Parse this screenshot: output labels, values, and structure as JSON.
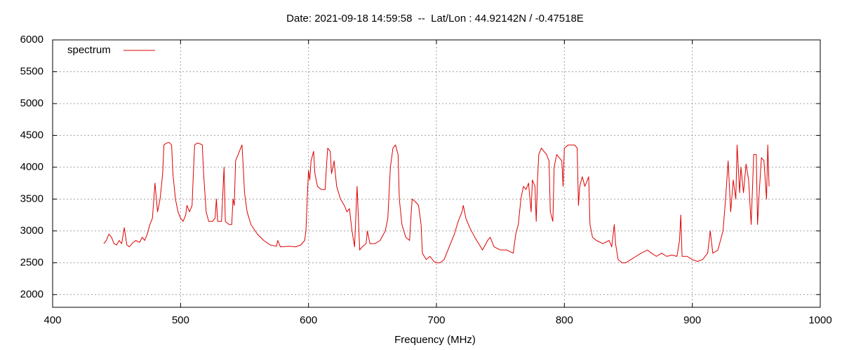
{
  "chart_data": {
    "type": "line",
    "title": "Date: 2021-09-18 14:59:58  --  Lat/Lon : 44.92142N / -0.47518E",
    "xlabel": "Frequency (MHz)",
    "xlim": [
      400,
      1000
    ],
    "xticks": [
      400,
      500,
      600,
      700,
      800,
      900,
      1000
    ],
    "ylim": [
      1800,
      6000
    ],
    "yticks": [
      2000,
      2500,
      3000,
      3500,
      4000,
      4500,
      5000,
      5500,
      6000
    ],
    "grid": true,
    "legend": "upper left",
    "x": [
      440,
      442,
      444,
      446,
      448,
      450,
      452,
      454,
      456,
      458,
      460,
      462,
      465,
      468,
      470,
      472,
      474,
      476,
      478,
      480,
      482,
      484,
      486,
      487,
      489,
      491,
      493,
      494,
      496,
      498,
      500,
      502,
      504,
      505,
      507,
      509,
      510,
      511,
      513,
      515,
      517,
      518,
      520,
      522,
      525,
      527,
      528,
      529,
      532,
      534,
      535,
      538,
      540,
      541,
      542,
      543,
      545,
      547,
      548,
      549,
      550,
      552,
      555,
      560,
      565,
      570,
      575,
      576,
      578,
      585,
      590,
      594,
      597,
      598,
      599,
      600,
      601,
      602,
      604,
      605,
      607,
      610,
      613,
      614,
      615,
      617,
      618,
      620,
      622,
      625,
      628,
      630,
      632,
      634,
      636,
      638,
      640,
      642,
      645,
      646,
      648,
      652,
      656,
      660,
      662,
      664,
      666,
      668,
      670,
      671,
      673,
      676,
      679,
      680,
      681,
      684,
      686,
      688,
      689,
      692,
      695,
      698,
      700,
      703,
      706,
      710,
      714,
      717,
      720,
      721,
      723,
      726,
      730,
      733,
      736,
      740,
      742,
      745,
      750,
      755,
      760,
      762,
      764,
      766,
      768,
      770,
      772,
      774,
      775,
      777,
      778,
      779,
      780,
      782,
      784,
      786,
      788,
      789,
      791,
      792,
      794,
      796,
      798,
      799,
      800,
      803,
      806,
      808,
      810,
      811,
      812,
      814,
      816,
      818,
      819,
      820,
      822,
      825,
      830,
      835,
      837,
      839,
      840,
      842,
      845,
      848,
      852,
      856,
      860,
      865,
      868,
      872,
      876,
      880,
      884,
      888,
      890,
      891,
      892,
      896,
      900,
      904,
      908,
      912,
      914,
      916,
      920,
      924,
      926,
      928,
      930,
      932,
      934,
      935,
      937,
      938,
      940,
      942,
      944,
      946,
      948,
      950,
      951,
      952,
      954,
      956,
      958,
      959,
      960
    ],
    "series": [
      {
        "name": "spectrum",
        "color": "#dd0000",
        "values": [
          2800,
          2850,
          2950,
          2900,
          2800,
          2780,
          2850,
          2800,
          3050,
          2780,
          2750,
          2800,
          2850,
          2820,
          2900,
          2850,
          2950,
          3100,
          3200,
          3750,
          3300,
          3500,
          3900,
          4350,
          4380,
          4390,
          4350,
          3900,
          3500,
          3300,
          3200,
          3150,
          3250,
          3400,
          3300,
          3400,
          3900,
          4350,
          4380,
          4370,
          4350,
          3900,
          3300,
          3150,
          3150,
          3200,
          3500,
          3150,
          3150,
          4000,
          3150,
          3100,
          3100,
          3500,
          3400,
          4100,
          4200,
          4300,
          4350,
          4000,
          3600,
          3300,
          3100,
          2950,
          2850,
          2780,
          2760,
          2850,
          2750,
          2760,
          2750,
          2780,
          2850,
          3000,
          3500,
          3950,
          3800,
          4100,
          4250,
          3900,
          3700,
          3650,
          3650,
          4000,
          4300,
          4250,
          3900,
          4100,
          3700,
          3500,
          3400,
          3300,
          3350,
          3000,
          2750,
          3700,
          2700,
          2750,
          2800,
          3000,
          2800,
          2800,
          2850,
          3000,
          3200,
          4000,
          4300,
          4350,
          4200,
          3500,
          3100,
          2900,
          2850,
          3200,
          3500,
          3450,
          3400,
          3100,
          2650,
          2550,
          2600,
          2520,
          2500,
          2500,
          2550,
          2750,
          2950,
          3150,
          3300,
          3400,
          3200,
          3050,
          2900,
          2800,
          2700,
          2850,
          2900,
          2750,
          2700,
          2700,
          2650,
          2950,
          3100,
          3500,
          3700,
          3650,
          3750,
          3300,
          3800,
          3700,
          3150,
          3800,
          4200,
          4300,
          4250,
          4200,
          4100,
          3300,
          3150,
          4000,
          4200,
          4150,
          4100,
          3700,
          4300,
          4350,
          4350,
          4350,
          4300,
          3400,
          3700,
          3850,
          3700,
          3800,
          3850,
          3100,
          2900,
          2850,
          2800,
          2850,
          2750,
          3100,
          2800,
          2550,
          2500,
          2500,
          2550,
          2600,
          2650,
          2700,
          2650,
          2600,
          2650,
          2600,
          2620,
          2600,
          2850,
          3250,
          2600,
          2600,
          2550,
          2520,
          2550,
          2650,
          3000,
          2650,
          2700,
          3000,
          3500,
          4100,
          3300,
          3800,
          3500,
          4350,
          3600,
          4000,
          3600,
          4050,
          3800,
          3100,
          4200,
          4200,
          3100,
          3500,
          4150,
          4100,
          3500,
          4350,
          3700
        ]
      }
    ]
  }
}
